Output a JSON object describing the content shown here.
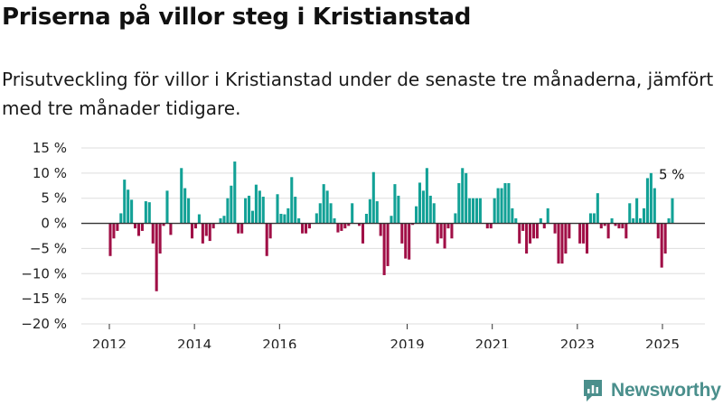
{
  "header": {
    "title": "Priserna på villor steg i Kristianstad",
    "subtitle": "Prisutveckling för villor i Kristianstad under de senaste tre månaderna, jämfört med tre månader tidigare."
  },
  "brand": {
    "name": "Newsworthy",
    "color": "#4a8f8c"
  },
  "colors": {
    "positive": "#12a196",
    "negative": "#a00f46",
    "grid": "#dddddd",
    "zero_line": "#333333"
  },
  "chart_data": {
    "type": "bar",
    "title": "Priserna på villor steg i Kristianstad",
    "xlabel": "",
    "ylabel": "",
    "ylim": [
      -20,
      15
    ],
    "y_ticks": [
      15,
      10,
      5,
      0,
      -5,
      -10,
      -15,
      -20
    ],
    "y_tick_labels": [
      "15 %",
      "10 %",
      "5 %",
      "0 %",
      "−5 %",
      "−10 %",
      "−15 %",
      "−20 %"
    ],
    "x_ticks": [
      2012,
      2014,
      2016,
      2019,
      2021,
      2023,
      2025
    ],
    "x_tick_labels": [
      "2012",
      "2014",
      "2016",
      "2019",
      "2021",
      "2023",
      "2025"
    ],
    "grid": true,
    "units": "%",
    "annotation": {
      "text": "5 %",
      "target": "last"
    },
    "series": [
      {
        "values": [
          -6.5,
          -3,
          -1.5,
          2,
          8.7,
          6.7,
          4.7,
          -1,
          -2.5,
          -1.5,
          4.4,
          4.2,
          -4,
          -13.5,
          -6,
          -0.5,
          6.5,
          -2.3,
          null,
          null,
          11,
          7,
          5,
          -3,
          -1,
          1.8,
          -4,
          -2.5,
          -3.5,
          -1,
          null,
          1,
          1.5,
          5,
          7.5,
          12.3,
          -2,
          -2,
          5,
          5.5,
          2.5,
          7.7,
          6.5,
          5.3,
          -6.5,
          -3,
          null,
          5.8,
          1.9,
          1.8,
          3,
          9.2,
          5.3,
          1,
          -2,
          -2,
          -1,
          null,
          2,
          4,
          7.8,
          6.5,
          4,
          1,
          -1.8,
          -1.5,
          -1,
          -0.5,
          4,
          null,
          -0.5,
          -4,
          1.9,
          4.8,
          10.2,
          4.4,
          -2.5,
          -10.3,
          -8.5,
          1.5,
          7.8,
          5.5,
          -4,
          -7,
          -7.2,
          -0.3,
          3.4,
          8.1,
          6.5,
          11,
          5.5,
          4,
          -4,
          -3,
          -5,
          -1,
          -3,
          2,
          8,
          11,
          10,
          5,
          5,
          5,
          5,
          null,
          -1,
          -1,
          5,
          7,
          7,
          8,
          8,
          3,
          1,
          -4,
          -1.5,
          -6,
          -4,
          -3,
          -3,
          1,
          -1,
          3,
          null,
          -2,
          -8,
          -8,
          -6,
          -3,
          null,
          null,
          -4,
          -4,
          -6,
          2,
          2,
          6,
          -1,
          -0.5,
          -3,
          1,
          -0.5,
          -1,
          -1,
          -3,
          4,
          1,
          5,
          1,
          3,
          9,
          10,
          7,
          -3,
          -8.8,
          -6,
          1,
          5
        ]
      }
    ]
  }
}
